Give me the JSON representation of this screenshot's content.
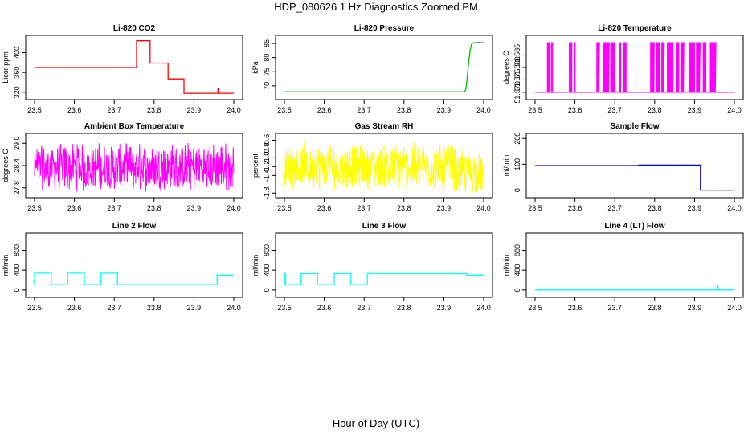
{
  "page": {
    "title": "HDP_080626  1 Hz Diagnostics Zoomed PM",
    "x_caption": "Hour of Day (UTC)"
  },
  "chart_data": [
    {
      "type": "line",
      "title": "Li-820 CO2",
      "ylabel": "Licor ppm",
      "xlim": [
        23.5,
        24.0
      ],
      "x_ticks": [
        "23.5",
        "23.6",
        "23.7",
        "23.8",
        "23.9",
        "24.0"
      ],
      "ylim": [
        310,
        430
      ],
      "y_ticks": [
        "320",
        "360",
        "400"
      ],
      "color": "#ff0000",
      "series": [
        {
          "x": [
            23.5,
            23.756,
            23.756,
            23.79,
            23.79,
            23.835,
            23.835,
            23.875,
            23.875,
            23.96,
            23.96,
            23.962,
            23.962,
            24.0
          ],
          "y": [
            370,
            370,
            424,
            424,
            379,
            379,
            347,
            347,
            318,
            318,
            328,
            328,
            318,
            318
          ]
        }
      ]
    },
    {
      "type": "line",
      "title": "Li-820 Pressure",
      "ylabel": "kPa",
      "xlim": [
        23.5,
        24.0
      ],
      "x_ticks": [
        "23.5",
        "23.6",
        "23.7",
        "23.8",
        "23.9",
        "24.0"
      ],
      "ylim": [
        66,
        87
      ],
      "y_ticks": [
        "70",
        "75",
        "80",
        "85"
      ],
      "color": "#00bb00",
      "series": [
        {
          "x": [
            23.5,
            23.95,
            23.955,
            23.958,
            23.962,
            23.966,
            23.97,
            23.975,
            23.98,
            24.0
          ],
          "y": [
            67.9,
            67.9,
            68.5,
            72,
            78,
            82.5,
            84.8,
            85.3,
            85.3,
            85.3
          ]
        }
      ]
    },
    {
      "type": "line",
      "title": "Li-820 Temperature",
      "ylabel": "degrees C",
      "xlim": [
        23.5,
        24.0
      ],
      "x_ticks": [
        "23.5",
        "23.6",
        "23.7",
        "23.8",
        "23.9",
        "24.0"
      ],
      "ylim": [
        51.568,
        51.592
      ],
      "y_ticks": [
        "51.570",
        "51.575",
        "51.580",
        "51.585"
      ],
      "color": "#ff00ff",
      "pattern": "two-level switching between 51.570 and 51.590",
      "levels": [
        51.57,
        51.59
      ]
    },
    {
      "type": "line",
      "title": "Ambient Box Temperature",
      "ylabel": "degrees C",
      "xlim": [
        23.5,
        24.0
      ],
      "x_ticks": [
        "23.5",
        "23.6",
        "23.7",
        "23.8",
        "23.9",
        "24.0"
      ],
      "ylim": [
        27.6,
        29.2
      ],
      "y_ticks": [
        "27.8",
        "28.4",
        "29.0"
      ],
      "color": "#ff00ff",
      "pattern": "noise around 28.35, range 27.7 to 29.0"
    },
    {
      "type": "line",
      "title": "Gas Stream RH",
      "ylabel": "percent",
      "xlim": [
        23.5,
        24.0
      ],
      "x_ticks": [
        "23.5",
        "23.6",
        "23.7",
        "23.8",
        "23.9",
        "24.0"
      ],
      "ylim": [
        -1.85,
        -0.5
      ],
      "y_ticks": [
        "-1.8",
        "-1.4",
        "-1.2",
        "-1.0",
        "-0.8",
        "-0.6"
      ],
      "color": "#ffff00",
      "pattern": "noise around -1.2, range -1.8 to -0.55"
    },
    {
      "type": "line",
      "title": "Sample Flow",
      "ylabel": "ml/min",
      "xlim": [
        23.5,
        24.0
      ],
      "x_ticks": [
        "23.5",
        "23.6",
        "23.7",
        "23.8",
        "23.9",
        "24.0"
      ],
      "ylim": [
        -20,
        210
      ],
      "y_ticks": [
        "0",
        "100",
        "200"
      ],
      "color": "#0000cc",
      "series": [
        {
          "x": [
            23.5,
            23.76,
            23.76,
            23.915,
            23.915,
            24.0
          ],
          "y": [
            95,
            95,
            97,
            97,
            0,
            0
          ]
        }
      ]
    },
    {
      "type": "line",
      "title": "Line 2 Flow",
      "ylabel": "ml/min",
      "xlim": [
        23.5,
        24.0
      ],
      "x_ticks": [
        "23.5",
        "23.6",
        "23.7",
        "23.8",
        "23.9",
        "24.0"
      ],
      "ylim": [
        -100,
        1100
      ],
      "y_ticks": [
        "0",
        "400",
        "800"
      ],
      "color": "#00ffff",
      "series": [
        {
          "x": [
            23.5,
            23.5,
            23.542,
            23.542,
            23.583,
            23.583,
            23.625,
            23.625,
            23.667,
            23.667,
            23.708,
            23.708,
            23.958,
            23.958,
            24.0
          ],
          "y": [
            110,
            340,
            340,
            110,
            110,
            340,
            340,
            110,
            110,
            340,
            340,
            110,
            110,
            300,
            300
          ]
        }
      ]
    },
    {
      "type": "line",
      "title": "Line 3 Flow",
      "ylabel": "ml/min",
      "xlim": [
        23.5,
        24.0
      ],
      "x_ticks": [
        "23.5",
        "23.6",
        "23.7",
        "23.8",
        "23.9",
        "24.0"
      ],
      "ylim": [
        -100,
        1100
      ],
      "y_ticks": [
        "0",
        "400",
        "800"
      ],
      "color": "#00ffff",
      "series": [
        {
          "x": [
            23.5,
            23.5,
            23.503,
            23.503,
            23.542,
            23.542,
            23.583,
            23.583,
            23.625,
            23.625,
            23.667,
            23.667,
            23.708,
            23.708,
            23.958,
            23.958,
            24.0
          ],
          "y": [
            110,
            330,
            330,
            110,
            110,
            330,
            330,
            110,
            110,
            330,
            330,
            110,
            110,
            330,
            330,
            300,
            300
          ]
        }
      ]
    },
    {
      "type": "line",
      "title": "Line 4 (LT) Flow",
      "ylabel": "ml/min",
      "xlim": [
        23.5,
        24.0
      ],
      "x_ticks": [
        "23.5",
        "23.6",
        "23.7",
        "23.8",
        "23.9",
        "24.0"
      ],
      "ylim": [
        -100,
        1100
      ],
      "y_ticks": [
        "0",
        "400",
        "800"
      ],
      "color": "#00ffff",
      "series": [
        {
          "x": [
            23.5,
            23.957,
            23.957,
            23.959,
            23.959,
            24.0
          ],
          "y": [
            0,
            0,
            90,
            90,
            0,
            0
          ]
        }
      ]
    }
  ]
}
